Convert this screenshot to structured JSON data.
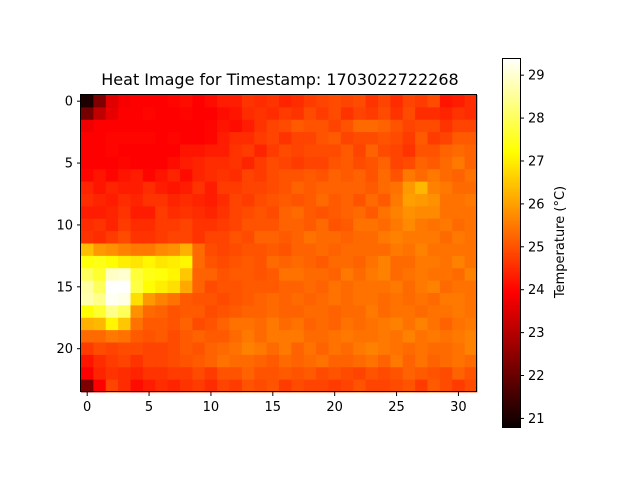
{
  "chart_data": {
    "type": "heatmap",
    "title": "Heat Image for Timestamp: 1703022722268",
    "xlabel": "",
    "ylabel": "",
    "colormap": "hot",
    "colorbar_label": "Temperature (°C)",
    "vmin": 20.8,
    "vmax": 29.4,
    "rows": 24,
    "cols": 32,
    "x_ticks": [
      0,
      5,
      10,
      15,
      20,
      25,
      30
    ],
    "y_ticks": [
      0,
      5,
      10,
      15,
      20
    ],
    "colorbar_ticks": [
      21,
      22,
      23,
      24,
      25,
      26,
      27,
      28,
      29
    ],
    "grid": false,
    "values": [
      [
        20.8,
        22.0,
        23.2,
        23.5,
        23.6,
        23.8,
        23.9,
        24.0,
        24.1,
        23.9,
        24.1,
        24.3,
        24.3,
        24.6,
        24.5,
        24.6,
        24.4,
        24.5,
        24.7,
        24.8,
        24.9,
        24.8,
        24.9,
        24.6,
        24.8,
        24.5,
        24.8,
        24.7,
        24.9,
        24.2,
        24.3,
        24.5
      ],
      [
        21.9,
        22.8,
        23.3,
        23.6,
        23.8,
        24.0,
        23.6,
        23.8,
        24.0,
        23.9,
        23.8,
        24.1,
        24.2,
        24.5,
        24.6,
        24.5,
        24.7,
        24.6,
        24.9,
        24.7,
        24.9,
        24.6,
        24.8,
        24.7,
        24.9,
        24.6,
        24.9,
        24.5,
        24.5,
        24.4,
        24.6,
        24.5
      ],
      [
        23.4,
        23.6,
        23.6,
        23.8,
        23.9,
        23.9,
        23.7,
        23.7,
        23.6,
        23.8,
        24.0,
        24.2,
        24.1,
        24.3,
        24.6,
        24.8,
        24.9,
        25.1,
        25.0,
        25.0,
        24.8,
        25.0,
        25.3,
        25.3,
        25.2,
        25.0,
        24.8,
        24.9,
        24.9,
        24.6,
        24.8,
        24.8
      ],
      [
        23.6,
        23.7,
        24.0,
        24.0,
        24.0,
        24.0,
        23.9,
        24.0,
        23.8,
        23.9,
        24.0,
        24.3,
        24.5,
        24.5,
        24.7,
        24.8,
        24.6,
        24.8,
        24.8,
        25.0,
        25.1,
        24.8,
        24.9,
        24.9,
        25.0,
        24.9,
        24.7,
        25.1,
        24.7,
        24.8,
        25.1,
        25.1
      ],
      [
        23.8,
        23.8,
        24.0,
        23.8,
        23.8,
        23.6,
        23.6,
        23.9,
        24.2,
        24.2,
        24.3,
        24.3,
        24.6,
        24.7,
        24.4,
        24.7,
        24.9,
        24.8,
        24.9,
        24.9,
        24.9,
        25.1,
        24.8,
        25.2,
        24.9,
        24.8,
        24.6,
        25.0,
        25.0,
        25.2,
        25.3,
        25.2
      ],
      [
        23.7,
        23.9,
        23.9,
        24.0,
        23.9,
        23.7,
        23.7,
        24.1,
        24.3,
        24.4,
        24.5,
        24.5,
        24.6,
        24.4,
        24.7,
        24.9,
        24.8,
        24.7,
        24.8,
        24.8,
        25.0,
        25.1,
        24.9,
        25.0,
        25.2,
        24.8,
        24.9,
        25.2,
        25.1,
        25.3,
        25.5,
        25.2
      ],
      [
        24.0,
        24.2,
        24.0,
        24.2,
        24.3,
        24.0,
        24.2,
        24.4,
        24.1,
        24.4,
        24.5,
        24.6,
        24.5,
        24.8,
        24.7,
        24.9,
        25.0,
        25.0,
        25.1,
        25.0,
        25.2,
        25.1,
        25.2,
        25.0,
        25.3,
        25.0,
        25.5,
        25.3,
        25.5,
        25.3,
        25.2,
        25.4
      ],
      [
        24.4,
        24.2,
        24.4,
        24.3,
        24.3,
        24.5,
        24.3,
        24.2,
        24.3,
        24.6,
        24.3,
        24.7,
        24.7,
        24.8,
        24.8,
        24.9,
        25.0,
        25.2,
        25.1,
        25.2,
        25.2,
        25.2,
        25.2,
        25.1,
        25.3,
        25.4,
        25.9,
        26.3,
        25.6,
        25.5,
        25.3,
        25.3
      ],
      [
        24.5,
        24.4,
        24.3,
        24.5,
        24.4,
        24.6,
        24.6,
        24.4,
        24.5,
        24.4,
        24.3,
        24.5,
        24.8,
        24.7,
        24.9,
        25.0,
        25.1,
        25.0,
        25.1,
        25.3,
        25.1,
        25.2,
        25.0,
        25.3,
        25.1,
        25.5,
        26.0,
        25.9,
        25.8,
        25.4,
        25.4,
        25.5
      ],
      [
        24.3,
        24.3,
        24.4,
        24.6,
        24.3,
        24.3,
        24.7,
        24.5,
        24.6,
        24.5,
        24.4,
        24.6,
        24.8,
        24.9,
        25.0,
        24.9,
        25.2,
        25.3,
        25.1,
        25.0,
        25.1,
        25.2,
        25.3,
        25.1,
        25.4,
        25.6,
        25.8,
        25.7,
        25.7,
        25.4,
        25.4,
        25.4
      ],
      [
        24.5,
        24.6,
        24.4,
        24.7,
        24.5,
        24.5,
        24.7,
        24.7,
        24.8,
        24.6,
        24.6,
        24.7,
        24.8,
        25.0,
        25.0,
        25.0,
        25.2,
        25.2,
        25.1,
        25.3,
        25.0,
        25.1,
        25.4,
        25.4,
        25.3,
        25.5,
        25.7,
        25.5,
        25.4,
        25.5,
        25.3,
        25.4
      ],
      [
        24.6,
        24.5,
        24.7,
        24.9,
        24.6,
        24.6,
        24.7,
        24.8,
        24.8,
        24.6,
        24.8,
        24.8,
        25.0,
        24.9,
        25.2,
        25.2,
        25.1,
        25.2,
        25.4,
        25.3,
        25.3,
        25.2,
        25.3,
        25.3,
        25.5,
        25.6,
        25.5,
        25.5,
        25.5,
        25.3,
        25.5,
        25.4
      ],
      [
        26.4,
        25.9,
        25.8,
        25.6,
        25.5,
        25.5,
        25.7,
        25.8,
        26.2,
        25.3,
        24.9,
        24.8,
        24.9,
        25.0,
        25.0,
        25.1,
        25.0,
        25.2,
        25.2,
        25.3,
        25.2,
        25.3,
        25.3,
        25.3,
        25.3,
        25.5,
        25.4,
        25.6,
        25.4,
        25.4,
        25.4,
        25.4
      ],
      [
        27.3,
        27.4,
        27.2,
        27.0,
        26.9,
        27.1,
        26.9,
        27.0,
        27.1,
        25.3,
        25.0,
        24.9,
        25.0,
        25.1,
        25.0,
        25.3,
        25.2,
        25.3,
        25.2,
        25.1,
        25.3,
        25.3,
        25.2,
        25.4,
        25.6,
        25.3,
        25.3,
        25.5,
        25.5,
        25.4,
        25.6,
        25.4
      ],
      [
        28.0,
        27.6,
        28.9,
        29.0,
        27.7,
        27.4,
        27.3,
        27.1,
        26.5,
        25.2,
        25.2,
        25.0,
        25.1,
        25.1,
        25.0,
        25.1,
        25.4,
        25.4,
        25.3,
        25.3,
        25.2,
        25.5,
        25.3,
        25.5,
        25.6,
        25.3,
        25.4,
        25.5,
        25.4,
        25.4,
        25.3,
        25.6
      ],
      [
        28.6,
        28.0,
        29.4,
        29.4,
        27.8,
        27.2,
        27.0,
        26.8,
        26.1,
        25.2,
        24.9,
        25.0,
        25.0,
        25.1,
        25.1,
        25.1,
        25.2,
        25.2,
        25.3,
        25.2,
        25.4,
        25.3,
        25.4,
        25.4,
        25.4,
        25.5,
        25.3,
        25.5,
        25.6,
        25.3,
        25.4,
        25.4
      ],
      [
        28.7,
        28.4,
        29.3,
        29.2,
        26.8,
        25.9,
        25.6,
        25.4,
        25.1,
        25.0,
        25.0,
        24.9,
        25.0,
        25.1,
        25.2,
        25.3,
        25.2,
        25.3,
        25.2,
        25.3,
        25.4,
        25.3,
        25.4,
        25.4,
        25.3,
        25.4,
        25.3,
        25.4,
        25.3,
        25.5,
        25.5,
        25.4
      ],
      [
        27.2,
        27.6,
        28.4,
        28.0,
        25.8,
        25.3,
        25.2,
        25.0,
        25.1,
        25.1,
        24.9,
        25.0,
        25.1,
        25.2,
        25.2,
        25.3,
        25.2,
        25.2,
        25.3,
        25.3,
        25.2,
        25.3,
        25.3,
        25.5,
        25.3,
        25.4,
        25.4,
        25.3,
        25.4,
        25.4,
        25.5,
        25.4
      ],
      [
        26.2,
        26.3,
        27.1,
        26.5,
        25.4,
        25.1,
        25.1,
        25.0,
        25.2,
        24.9,
        25.0,
        25.2,
        25.4,
        25.4,
        25.3,
        25.5,
        25.3,
        25.4,
        25.2,
        25.3,
        25.2,
        25.4,
        25.3,
        25.4,
        25.5,
        25.6,
        25.4,
        25.6,
        25.4,
        25.2,
        25.4,
        25.5
      ],
      [
        25.3,
        25.3,
        25.5,
        25.4,
        25.1,
        25.0,
        25.1,
        24.9,
        25.1,
        25.2,
        25.1,
        25.1,
        25.3,
        25.5,
        25.3,
        25.5,
        25.5,
        25.5,
        25.3,
        25.3,
        25.4,
        25.5,
        25.4,
        25.4,
        25.5,
        25.4,
        25.6,
        25.4,
        25.5,
        25.4,
        25.5,
        25.6
      ],
      [
        24.7,
        24.9,
        24.8,
        24.9,
        24.9,
        24.8,
        24.8,
        24.9,
        25.1,
        25.0,
        25.2,
        25.3,
        25.4,
        25.6,
        25.5,
        25.3,
        25.5,
        25.2,
        25.4,
        25.2,
        25.4,
        25.3,
        25.5,
        25.6,
        25.5,
        25.4,
        25.3,
        25.4,
        25.3,
        25.3,
        25.4,
        25.6
      ],
      [
        24.2,
        24.5,
        24.7,
        24.8,
        24.6,
        24.8,
        24.8,
        24.9,
        25.0,
        25.1,
        25.2,
        25.4,
        25.3,
        25.3,
        25.2,
        25.1,
        25.3,
        25.2,
        25.3,
        25.4,
        25.2,
        25.2,
        25.3,
        25.4,
        25.2,
        25.5,
        25.2,
        25.4,
        25.2,
        25.3,
        25.4,
        25.3
      ],
      [
        23.6,
        24.4,
        24.6,
        24.5,
        24.4,
        24.6,
        24.6,
        24.7,
        24.7,
        24.9,
        24.7,
        25.0,
        25.0,
        25.2,
        25.0,
        25.0,
        25.1,
        25.0,
        25.1,
        24.9,
        25.0,
        24.9,
        24.8,
        25.0,
        24.9,
        25.0,
        25.2,
        25.1,
        25.0,
        24.9,
        25.2,
        25.0
      ],
      [
        22.0,
        23.6,
        24.8,
        24.5,
        24.1,
        24.3,
        24.5,
        24.4,
        24.6,
        24.7,
        24.5,
        24.8,
        24.7,
        25.0,
        24.9,
        25.0,
        24.7,
        24.9,
        24.8,
        24.8,
        24.7,
        24.8,
        25.0,
        24.8,
        24.8,
        24.9,
        25.0,
        24.7,
        25.1,
        24.9,
        24.7,
        24.9
      ]
    ]
  }
}
